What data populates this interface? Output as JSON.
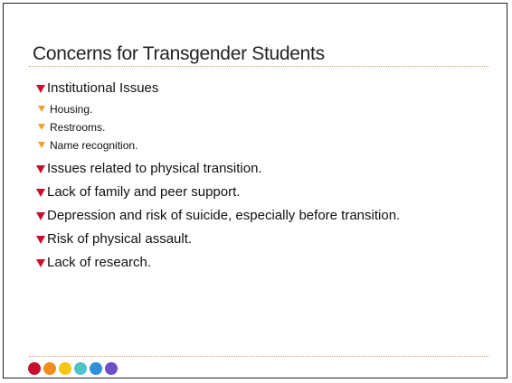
{
  "slide": {
    "title": "Concerns for Transgender Students",
    "bullets": [
      {
        "text": "Institutional Issues",
        "sub": [
          "Housing.",
          "Restrooms.",
          "Name recognition."
        ]
      },
      {
        "text": "Issues related to physical transition."
      },
      {
        "text": "Lack of family and peer support."
      },
      {
        "text": "Depression and risk of suicide, especially before transition."
      },
      {
        "text": "Risk of physical assault."
      },
      {
        "text": "Lack of research."
      }
    ]
  }
}
